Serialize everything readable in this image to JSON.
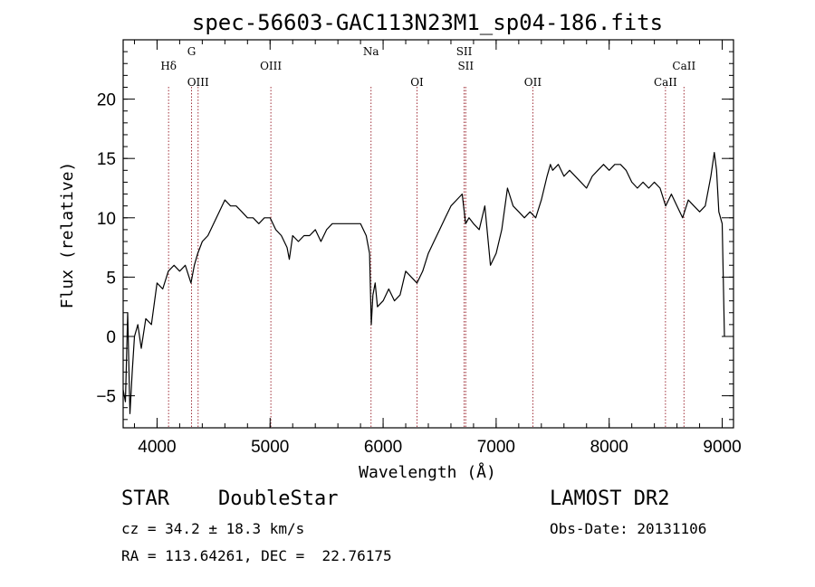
{
  "chart_data": {
    "type": "line",
    "title": "spec-56603-GAC113N23M1_sp04-186.fits",
    "xlabel": "Wavelength (Å)",
    "ylabel": "Flux (relative)",
    "xlim": [
      3700,
      9100
    ],
    "ylim": [
      -7.7,
      25
    ],
    "xticks": [
      4000,
      5000,
      6000,
      7000,
      8000,
      9000
    ],
    "xticks_minor_step": 200,
    "yticks": [
      -5,
      0,
      5,
      10,
      15,
      20
    ],
    "yticks_minor_step": 1,
    "grid": false,
    "line_color": "#000000",
    "marker_color": "#a0303a",
    "x": [
      3700,
      3720,
      3740,
      3760,
      3780,
      3800,
      3830,
      3860,
      3900,
      3950,
      4000,
      4050,
      4100,
      4150,
      4200,
      4250,
      4300,
      4330,
      4360,
      4400,
      4450,
      4500,
      4550,
      4600,
      4650,
      4700,
      4750,
      4800,
      4850,
      4900,
      4950,
      5000,
      5050,
      5100,
      5150,
      5170,
      5200,
      5250,
      5300,
      5350,
      5400,
      5450,
      5500,
      5550,
      5600,
      5650,
      5700,
      5750,
      5800,
      5850,
      5880,
      5895,
      5910,
      5930,
      5950,
      6000,
      6050,
      6100,
      6150,
      6200,
      6250,
      6300,
      6350,
      6400,
      6450,
      6500,
      6550,
      6600,
      6650,
      6700,
      6730,
      6760,
      6800,
      6850,
      6900,
      6950,
      7000,
      7050,
      7100,
      7150,
      7200,
      7250,
      7300,
      7350,
      7400,
      7450,
      7480,
      7500,
      7550,
      7600,
      7650,
      7700,
      7750,
      7800,
      7850,
      7900,
      7950,
      8000,
      8050,
      8100,
      8150,
      8200,
      8250,
      8300,
      8350,
      8400,
      8450,
      8500,
      8550,
      8600,
      8650,
      8700,
      8750,
      8800,
      8850,
      8900,
      8930,
      8950,
      8970,
      9000,
      9020
    ],
    "y": [
      -4.5,
      -5.5,
      2,
      -6.5,
      -3,
      0,
      1,
      -1,
      1.5,
      1,
      4.5,
      4,
      5.5,
      6,
      5.5,
      6,
      4.5,
      6,
      7,
      8,
      8.5,
      9.5,
      10.5,
      11.5,
      11,
      11,
      10.5,
      10,
      10,
      9.5,
      10,
      10,
      9,
      8.5,
      7.5,
      6.5,
      8.5,
      8,
      8.5,
      8.5,
      9,
      8,
      9,
      9.5,
      9.5,
      9.5,
      9.5,
      9.5,
      9.5,
      8.5,
      7,
      1,
      3.5,
      4.5,
      2.5,
      3,
      4,
      3,
      3.5,
      5.5,
      5,
      4.5,
      5.5,
      7,
      8,
      9,
      10,
      11,
      11.5,
      12,
      9.5,
      10,
      9.5,
      9,
      11,
      6,
      7,
      9,
      12.5,
      11,
      10.5,
      10,
      10.5,
      10,
      11.5,
      13.5,
      14.5,
      14,
      14.5,
      13.5,
      14,
      13.5,
      13,
      12.5,
      13.5,
      14,
      14.5,
      14,
      14.5,
      14.5,
      14,
      13,
      12.5,
      13,
      12.5,
      13,
      12.5,
      11,
      12,
      11,
      10,
      11.5,
      11,
      10.5,
      11,
      13.5,
      15.5,
      14,
      10.5,
      9.5,
      0
    ],
    "line_markers": [
      {
        "label": "Hδ",
        "x": 4102,
        "label_row": 1
      },
      {
        "label": "G",
        "x": 4305,
        "label_row": 0
      },
      {
        "label": "OIII",
        "x": 4363,
        "label_row": 2
      },
      {
        "label": "OIII",
        "x": 5007,
        "label_row": 1
      },
      {
        "label": "Na",
        "x": 5893,
        "label_row": 0
      },
      {
        "label": "OI",
        "x": 6300,
        "label_row": 2
      },
      {
        "label": "SII",
        "x": 6717,
        "label_row": 0
      },
      {
        "label": "SII",
        "x": 6731,
        "label_row": 1
      },
      {
        "label": "OII",
        "x": 7325,
        "label_row": 2
      },
      {
        "label": "CaII",
        "x": 8498,
        "label_row": 2
      },
      {
        "label": "CaII",
        "x": 8662,
        "label_row": 1
      }
    ]
  },
  "info": {
    "class": "STAR",
    "subclass": "DoubleStar",
    "survey": "LAMOST DR2",
    "cz": "cz = 34.2 ± 18.3 km/s",
    "obs_date": "Obs-Date: 20131106",
    "coords": "RA = 113.64261, DEC =  22.76175"
  }
}
